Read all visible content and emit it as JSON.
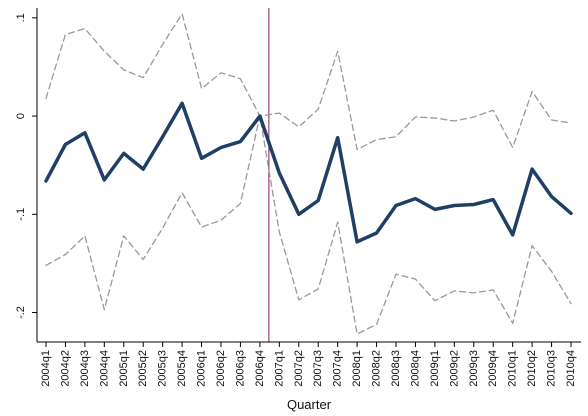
{
  "chart_data": {
    "type": "line",
    "title": "",
    "xlabel": "Quarter",
    "ylabel": "",
    "ylim": [
      -0.23,
      0.11
    ],
    "yticks": [
      0.1,
      0,
      -0.1,
      -0.2
    ],
    "ytick_labels": [
      ".1",
      "0",
      "-.1",
      "-.2"
    ],
    "grid": false,
    "legend": "none",
    "vline_at": "2006q4",
    "colors": {
      "estimate": "#1f3f66",
      "confidence_band": "#999999",
      "vertical_line": "#8b1a5c",
      "axis": "#000000"
    },
    "categories": [
      "2004q1",
      "2004q2",
      "2004q3",
      "2004q4",
      "2005q1",
      "2005q2",
      "2005q3",
      "2005q4",
      "2006q1",
      "2006q2",
      "2006q3",
      "2006q4",
      "2007q1",
      "2007q2",
      "2007q3",
      "2007q4",
      "2008q1",
      "2008q2",
      "2008q3",
      "2008q4",
      "2009q1",
      "2009q2",
      "2009q3",
      "2009q4",
      "2010q1",
      "2010q2",
      "2010q3",
      "2010q4"
    ],
    "series": [
      {
        "role": "estimate",
        "style": "solid-thick",
        "values": [
          -0.066,
          -0.029,
          -0.017,
          -0.065,
          -0.038,
          -0.054,
          -0.021,
          0.013,
          -0.043,
          -0.032,
          -0.026,
          0.0,
          -0.058,
          -0.1,
          -0.086,
          -0.022,
          -0.128,
          -0.119,
          -0.091,
          -0.084,
          -0.095,
          -0.091,
          -0.09,
          -0.085,
          -0.121,
          -0.054,
          -0.082,
          -0.099
        ]
      },
      {
        "role": "upper-bound",
        "style": "dashed",
        "values": [
          0.018,
          0.083,
          0.089,
          0.066,
          0.047,
          0.039,
          0.073,
          0.104,
          0.028,
          0.044,
          0.038,
          0.0,
          0.003,
          -0.011,
          0.007,
          0.066,
          -0.034,
          -0.024,
          -0.021,
          -0.001,
          -0.002,
          -0.005,
          -0.001,
          0.006,
          -0.032,
          0.025,
          -0.004,
          -0.007
        ]
      },
      {
        "role": "lower-bound",
        "style": "dashed",
        "values": [
          -0.152,
          -0.141,
          -0.122,
          -0.197,
          -0.122,
          -0.146,
          -0.114,
          -0.078,
          -0.113,
          -0.106,
          -0.089,
          0.0,
          -0.118,
          -0.187,
          -0.176,
          -0.108,
          -0.222,
          -0.212,
          -0.161,
          -0.166,
          -0.188,
          -0.178,
          -0.18,
          -0.177,
          -0.211,
          -0.132,
          -0.158,
          -0.191
        ]
      }
    ]
  }
}
